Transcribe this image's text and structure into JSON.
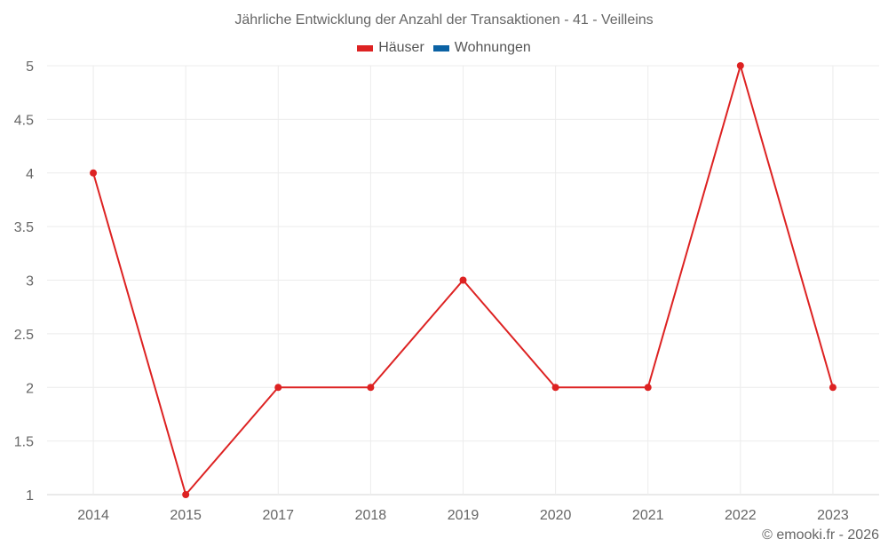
{
  "chart_data": {
    "type": "line",
    "title": "Jährliche Entwicklung der Anzahl der Transaktionen - 41 - Veilleins",
    "categories": [
      "2014",
      "2015",
      "2017",
      "2018",
      "2019",
      "2020",
      "2021",
      "2022",
      "2023"
    ],
    "series": [
      {
        "name": "Häuser",
        "color": "#dd2222",
        "values": [
          4,
          1,
          2,
          2,
          3,
          2,
          2,
          5,
          2
        ]
      },
      {
        "name": "Wohnungen",
        "color": "#0b62a4",
        "values": []
      }
    ],
    "xlabel": "",
    "ylabel": "",
    "ylim": [
      1,
      5
    ],
    "yticks": [
      "1",
      "1.5",
      "2",
      "2.5",
      "3",
      "3.5",
      "4",
      "4.5",
      "5"
    ],
    "grid": true,
    "legend_position": "top"
  },
  "legend": [
    {
      "label": "Häuser",
      "color": "#dd2222"
    },
    {
      "label": "Wohnungen",
      "color": "#0b62a4"
    }
  ],
  "credit": "© emooki.fr - 2026"
}
